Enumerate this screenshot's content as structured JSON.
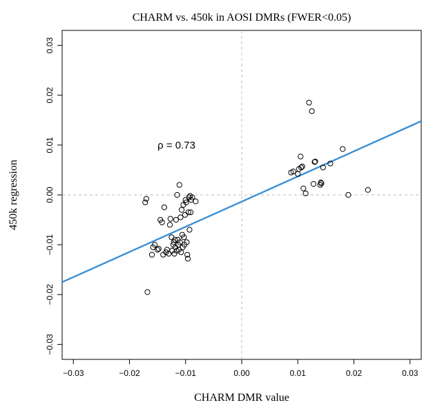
{
  "chart_data": {
    "type": "scatter",
    "title": "CHARM vs. 450k in AOSI DMRs (FWER<0.05)",
    "xlabel": "CHARM DMR value",
    "ylabel": "450k  regression",
    "xlim": [
      -0.032,
      0.032
    ],
    "ylim": [
      -0.033,
      0.033
    ],
    "xticks": [
      -0.03,
      -0.02,
      -0.01,
      0.0,
      0.01,
      0.02,
      0.03
    ],
    "xtick_labels": [
      "−0.03",
      "−0.02",
      "−0.01",
      "0.00",
      "0.01",
      "0.02",
      "0.03"
    ],
    "yticks": [
      -0.03,
      -0.02,
      -0.01,
      0.0,
      0.01,
      0.02,
      0.03
    ],
    "ytick_labels": [
      "−0.03",
      "−0.02",
      "−0.01",
      "0.00",
      "0.01",
      "0.02",
      "0.03"
    ],
    "grid": false,
    "reference_lines": {
      "x": 0.0,
      "y": 0.0,
      "style": "dashed",
      "color": "#bbbbbb"
    },
    "annotation": {
      "text": "ρ = 0.73",
      "x": -0.015,
      "y": 0.01
    },
    "marker_color": "#000000",
    "fit_line": {
      "color": "#3a8fd6",
      "x": [
        -0.032,
        0.032
      ],
      "y": [
        -0.0175,
        0.0148
      ]
    },
    "points": [
      [
        -0.0172,
        -0.0015
      ],
      [
        -0.017,
        -0.0008
      ],
      [
        -0.0168,
        -0.0195
      ],
      [
        -0.016,
        -0.012
      ],
      [
        -0.0158,
        -0.0105
      ],
      [
        -0.0155,
        -0.01
      ],
      [
        -0.015,
        -0.011
      ],
      [
        -0.0148,
        -0.0108
      ],
      [
        -0.0145,
        -0.005
      ],
      [
        -0.0142,
        -0.0055
      ],
      [
        -0.014,
        -0.012
      ],
      [
        -0.0138,
        -0.0025
      ],
      [
        -0.0135,
        -0.0115
      ],
      [
        -0.0133,
        -0.011
      ],
      [
        -0.013,
        -0.0118
      ],
      [
        -0.0128,
        -0.006
      ],
      [
        -0.0127,
        -0.0048
      ],
      [
        -0.0125,
        -0.0085
      ],
      [
        -0.0124,
        -0.0112
      ],
      [
        -0.0122,
        -0.01
      ],
      [
        -0.0121,
        -0.0095
      ],
      [
        -0.012,
        -0.0118
      ],
      [
        -0.0119,
        -0.009
      ],
      [
        -0.0118,
        -0.0105
      ],
      [
        -0.0117,
        -0.005
      ],
      [
        -0.0116,
        -0.0112
      ],
      [
        -0.0115,
        0.0
      ],
      [
        -0.0114,
        -0.009
      ],
      [
        -0.0113,
        -0.01
      ],
      [
        -0.0112,
        -0.011
      ],
      [
        -0.0111,
        0.002
      ],
      [
        -0.011,
        -0.0095
      ],
      [
        -0.0109,
        -0.0045
      ],
      [
        -0.0108,
        -0.0115
      ],
      [
        -0.0107,
        -0.003
      ],
      [
        -0.0106,
        -0.008
      ],
      [
        -0.0105,
        -0.0105
      ],
      [
        -0.0104,
        -0.002
      ],
      [
        -0.0103,
        -0.0085
      ],
      [
        -0.0102,
        -0.01
      ],
      [
        -0.0101,
        -0.004
      ],
      [
        -0.01,
        -0.001
      ],
      [
        -0.0099,
        -0.0015
      ],
      [
        -0.0098,
        -0.0095
      ],
      [
        -0.0097,
        -0.012
      ],
      [
        -0.0096,
        -0.0128
      ],
      [
        -0.0095,
        -0.0035
      ],
      [
        -0.0094,
        -0.0005
      ],
      [
        -0.0093,
        -0.007
      ],
      [
        -0.0092,
        -0.0002
      ],
      [
        -0.0091,
        -0.0035
      ],
      [
        -0.009,
        -0.001
      ],
      [
        -0.0088,
        -0.0005
      ],
      [
        -0.0082,
        -0.0013
      ],
      [
        0.0088,
        0.0045
      ],
      [
        0.0092,
        0.0047
      ],
      [
        0.01,
        0.0042
      ],
      [
        0.0102,
        0.0052
      ],
      [
        0.0105,
        0.0077
      ],
      [
        0.0106,
        0.0055
      ],
      [
        0.0108,
        0.0057
      ],
      [
        0.011,
        0.0013
      ],
      [
        0.0114,
        0.0003
      ],
      [
        0.012,
        0.0185
      ],
      [
        0.0125,
        0.0168
      ],
      [
        0.0128,
        0.0022
      ],
      [
        0.013,
        0.0066
      ],
      [
        0.0131,
        0.0067
      ],
      [
        0.014,
        0.002
      ],
      [
        0.0141,
        0.0025
      ],
      [
        0.0142,
        0.0023
      ],
      [
        0.0145,
        0.0055
      ],
      [
        0.0158,
        0.0063
      ],
      [
        0.018,
        0.0092
      ],
      [
        0.019,
        0.0
      ],
      [
        0.0225,
        0.001
      ]
    ]
  }
}
